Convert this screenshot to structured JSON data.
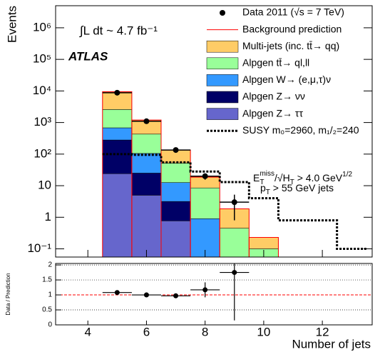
{
  "chart_data": [
    {
      "type": "bar",
      "stacked": true,
      "log_y": true,
      "y_label": "Events",
      "annotations": {
        "lumi": "∫L dt ~ 4.7 fb⁻¹",
        "experiment": "ATLAS",
        "cut1": [
          "E",
          "T",
          "miss",
          "/√H",
          "T",
          " > 4.0 GeV",
          "1/2"
        ],
        "cut2": [
          "p",
          "T",
          " > 55 GeV jets"
        ]
      },
      "x": [
        5,
        6,
        7,
        8,
        9,
        10
      ],
      "xlim": [
        2.9,
        13.7
      ],
      "xticks": [
        4,
        6,
        8,
        10,
        12
      ],
      "ylim": [
        0.055,
        5000000
      ],
      "yticks": [
        {
          "value": 0.1,
          "label": "10⁻¹"
        },
        1,
        10,
        {
          "value": 100,
          "label": "10²"
        },
        {
          "value": 1000,
          "label": "10³"
        },
        {
          "value": 10000,
          "label": "10⁴"
        },
        {
          "value": 100000,
          "label": "10⁵"
        },
        {
          "value": 1000000,
          "label": "10⁶"
        }
      ],
      "legend": "upper right",
      "series": [
        {
          "name": "Data 2011 (√s = 7 TeV)",
          "kind": "points",
          "color": "#000000",
          "x": [
            5,
            6,
            7,
            8,
            9
          ],
          "values": [
            8800,
            1100,
            135,
            20,
            3
          ],
          "errors": [
            94,
            33,
            12,
            4.5,
            2.2
          ]
        },
        {
          "name": "Background prediction",
          "kind": "outline",
          "color": "#ff0000"
        },
        {
          "name": "Multi-jets (inc. tt̄→ qq)",
          "kind": "stack",
          "color": "#ffcc66",
          "values": [
            6900,
            770,
            83,
            10.1,
            1.4,
            0.13
          ]
        },
        {
          "name": "Alpgen tt̄→ ql,ll",
          "kind": "stack",
          "color": "#99ff99",
          "values": [
            1900,
            325,
            39,
            7.6,
            0.45,
            0.1
          ]
        },
        {
          "name": "Alpgen W→ (e,μ,τ)ν",
          "kind": "stack",
          "color": "#3399ff",
          "values": [
            400,
            80,
            9.4,
            0.9,
            0,
            0
          ]
        },
        {
          "name": "Alpgen Z→ νν",
          "kind": "stack",
          "color": "#000066",
          "values": [
            256,
            20,
            2.4,
            0,
            0,
            0
          ]
        },
        {
          "name": "Alpgen Z→ ττ",
          "kind": "stack",
          "color": "#6666cc",
          "values": [
            24,
            5,
            0.77,
            0,
            0,
            0
          ]
        },
        {
          "name": "SUSY m₀=2960, m₁/₂=240",
          "kind": "step",
          "color": "#000000",
          "x": [
            5,
            6,
            7,
            8,
            9,
            10,
            11,
            12,
            13
          ],
          "values": [
            100,
            95,
            55,
            28,
            13,
            4,
            0.8,
            0.8,
            0.1
          ]
        }
      ]
    },
    {
      "type": "scatter",
      "y_label": "Data / Prediction",
      "x_label": "Number of jets",
      "x": [
        5,
        6,
        7,
        8,
        9
      ],
      "values": [
        1.08,
        1.0,
        0.97,
        1.17,
        1.75
      ],
      "errors": [
        0.03,
        0.04,
        0.06,
        0.25,
        1.6
      ],
      "ylim": [
        0,
        2.05
      ],
      "yticks": [
        0,
        0.5,
        1,
        1.5,
        2
      ],
      "grid": true,
      "reference": 1,
      "reference_color": "#ff0000"
    }
  ]
}
